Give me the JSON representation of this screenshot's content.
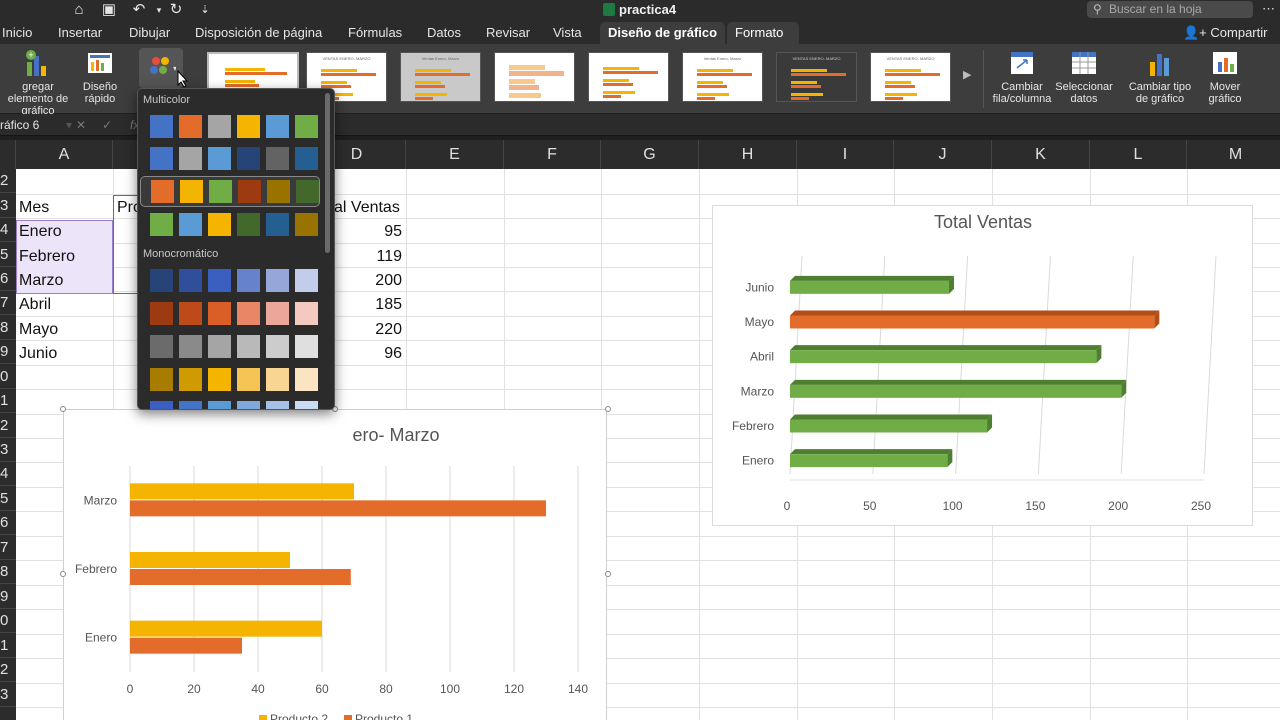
{
  "titlebar": {
    "doc_title": "practica4",
    "search_placeholder": "Buscar en la hoja"
  },
  "tabs": [
    {
      "label": "Inicio"
    },
    {
      "label": "Insertar"
    },
    {
      "label": "Dibujar"
    },
    {
      "label": "Disposición de página"
    },
    {
      "label": "Fórmulas"
    },
    {
      "label": "Datos"
    },
    {
      "label": "Revisar"
    },
    {
      "label": "Vista"
    },
    {
      "label": "Diseño de gráfico"
    },
    {
      "label": "Formato"
    }
  ],
  "share_label": "Compartir",
  "ribbon": {
    "add_element": "gregar elemento de gráfico",
    "quick_layout": "Diseño rápido",
    "switch_rowcol": "Cambiar fila/columna",
    "select_data": "Seleccionar datos",
    "change_type": "Cambiar tipo de gráfico",
    "move_chart": "Mover gráfico",
    "gallery_titles": [
      "",
      "VENTAS ENERO- MARZO",
      "Ventas Enero- Marzo",
      "",
      "",
      "Ventas Enero- Marzo",
      "VENTAS ENERO- MARZO",
      "VENTAS ENERO- MARZO"
    ]
  },
  "namebox": "ráfico 6",
  "columns": [
    "A",
    "B",
    "C",
    "D",
    "E",
    "F",
    "G",
    "H",
    "I",
    "J",
    "K",
    "L",
    "M"
  ],
  "rows": [
    "2",
    "3",
    "4",
    "5",
    "6",
    "7",
    "8",
    "9",
    "0",
    "1",
    "2",
    "3",
    "4",
    "5",
    "6",
    "7",
    "8",
    "9",
    "0",
    "1",
    "2",
    "3"
  ],
  "cells": {
    "A3": "Mes",
    "B3": "Pro",
    "D3": "al Ventas",
    "A4": "Enero",
    "D4": "95",
    "A5": "Febrero",
    "D5": "119",
    "A6": "Marzo",
    "D6": "200",
    "A7": "Abril",
    "D7": "185",
    "A8": "Mayo",
    "D8": "220",
    "A9": "Junio",
    "D9": "96"
  },
  "popup": {
    "multicolor_label": "Multicolor",
    "mono_label": "Monocromático",
    "multicolor_rows": [
      [
        "#4472c4",
        "#e46c2b",
        "#a5a5a5",
        "#f4b400",
        "#5b9bd5",
        "#70ad47"
      ],
      [
        "#4472c4",
        "#a5a5a5",
        "#5b9bd5",
        "#264478",
        "#636363",
        "#255e91"
      ],
      [
        "#e46c2b",
        "#f4b400",
        "#70ad47",
        "#9e3a12",
        "#997300",
        "#43682b"
      ],
      [
        "#70ad47",
        "#5b9bd5",
        "#f4b400",
        "#43682b",
        "#255e91",
        "#997300"
      ]
    ],
    "mono_rows": [
      [
        "#264478",
        "#2f4f9a",
        "#3b5fc0",
        "#6682cc",
        "#94a7d8",
        "#c1cdeb"
      ],
      [
        "#9e3a12",
        "#bd4a18",
        "#d95f26",
        "#e88666",
        "#eda69a",
        "#f4c9c0"
      ],
      [
        "#6b6b6b",
        "#8a8a8a",
        "#a5a5a5",
        "#b9b9b9",
        "#cccccc",
        "#dfdfdf"
      ],
      [
        "#a77c00",
        "#cf9b00",
        "#f4b400",
        "#f6c455",
        "#f8d592",
        "#fbe4c2"
      ],
      [
        "#3b5fc0",
        "#4472c4",
        "#5b9bd5",
        "#7fa9dc",
        "#a4c2e7",
        "#c8dbf2"
      ]
    ]
  },
  "chart_data": [
    {
      "type": "bar",
      "orientation": "horizontal",
      "title": "ero- Marzo",
      "categories": [
        "Enero",
        "Febrero",
        "Marzo"
      ],
      "series": [
        {
          "name": "Producto 2",
          "color": "#f4b400",
          "values": [
            60,
            50,
            70
          ]
        },
        {
          "name": "Producto 1",
          "color": "#e46c2b",
          "values": [
            35,
            69,
            130
          ]
        }
      ],
      "xlim": [
        0,
        140
      ],
      "xticks": [
        0,
        20,
        40,
        60,
        80,
        100,
        120,
        140
      ],
      "legend": "bottom",
      "grid": true
    },
    {
      "type": "bar",
      "orientation": "horizontal",
      "style": "3d",
      "title": "Total Ventas",
      "categories": [
        "Enero",
        "Febrero",
        "Marzo",
        "Abril",
        "Mayo",
        "Junio"
      ],
      "values": [
        95,
        119,
        200,
        185,
        220,
        96
      ],
      "colors": [
        "#70ad47",
        "#70ad47",
        "#70ad47",
        "#70ad47",
        "#e46c2b",
        "#70ad47"
      ],
      "xlim": [
        0,
        250
      ],
      "xticks": [
        0,
        50,
        100,
        150,
        200,
        250
      ],
      "grid": true
    }
  ]
}
